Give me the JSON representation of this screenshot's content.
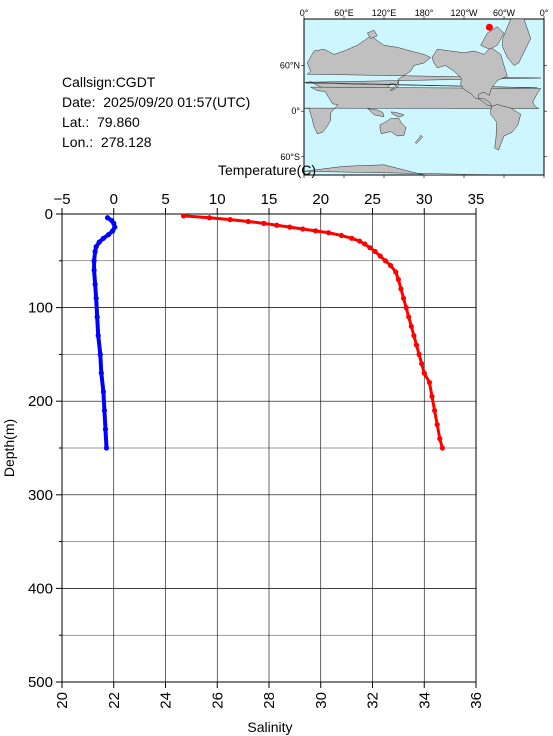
{
  "station": {
    "callsign": "Callsign:CGDT",
    "date": "Date:  2025/09/20 01:57(UTC)",
    "lat": "Lat.:  79.860",
    "lon": "Lon.:  278.128"
  },
  "map": {
    "top_labels": [
      "0°",
      "60°E",
      "120°E",
      "180°",
      "120°W",
      "60°W",
      "0°"
    ],
    "left_labels": [
      "60°N",
      "0°",
      "60°S"
    ],
    "ocean_color": "#cdf6ff",
    "land_color": "#c0c0c0",
    "marker_color": "#ff0000",
    "station_position": {
      "lat": 79.86,
      "lon": 278.128
    }
  },
  "chart_data": {
    "type": "line",
    "top_axis": {
      "label": "Temperature(C)",
      "range": [
        -5,
        35
      ],
      "ticks": [
        "−5",
        "0",
        "5",
        "10",
        "15",
        "20",
        "25",
        "30",
        "35"
      ]
    },
    "bottom_axis": {
      "label": "Salinity",
      "range": [
        20,
        36
      ],
      "ticks": [
        "20",
        "22",
        "24",
        "26",
        "28",
        "30",
        "32",
        "34",
        "36"
      ]
    },
    "y_axis": {
      "label": "Depth(m)",
      "range": [
        0,
        500
      ],
      "inverted": true,
      "ticks": [
        "0",
        "100",
        "200",
        "300",
        "400",
        "500"
      ]
    },
    "grid": true,
    "series": [
      {
        "quantity": "temperature",
        "color": "#0000ff",
        "points": [
          [
            -0.6,
            4
          ],
          [
            -0.2,
            7
          ],
          [
            0.0,
            10
          ],
          [
            0.1,
            14
          ],
          [
            -0.1,
            18
          ],
          [
            -0.5,
            22
          ],
          [
            -1.0,
            26
          ],
          [
            -1.4,
            30
          ],
          [
            -1.7,
            35
          ],
          [
            -1.8,
            40
          ],
          [
            -1.9,
            50
          ],
          [
            -1.9,
            60
          ],
          [
            -1.8,
            75
          ],
          [
            -1.7,
            90
          ],
          [
            -1.6,
            110
          ],
          [
            -1.5,
            130
          ],
          [
            -1.3,
            150
          ],
          [
            -1.2,
            170
          ],
          [
            -1.0,
            190
          ],
          [
            -0.9,
            210
          ],
          [
            -0.8,
            230
          ],
          [
            -0.7,
            250
          ]
        ]
      },
      {
        "quantity": "salinity",
        "color": "#ff0000",
        "points": [
          [
            24.7,
            2
          ],
          [
            25.7,
            4
          ],
          [
            26.5,
            6
          ],
          [
            27.2,
            8
          ],
          [
            27.8,
            10
          ],
          [
            28.3,
            12
          ],
          [
            28.8,
            14
          ],
          [
            29.3,
            16
          ],
          [
            29.8,
            18
          ],
          [
            30.3,
            20
          ],
          [
            30.8,
            23
          ],
          [
            31.2,
            26
          ],
          [
            31.5,
            29
          ],
          [
            31.7,
            32
          ],
          [
            31.9,
            36
          ],
          [
            32.1,
            40
          ],
          [
            32.3,
            45
          ],
          [
            32.5,
            50
          ],
          [
            32.7,
            55
          ],
          [
            32.9,
            62
          ],
          [
            33.0,
            70
          ],
          [
            33.1,
            80
          ],
          [
            33.2,
            90
          ],
          [
            33.3,
            100
          ],
          [
            33.4,
            110
          ],
          [
            33.5,
            120
          ],
          [
            33.6,
            130
          ],
          [
            33.7,
            140
          ],
          [
            33.8,
            150
          ],
          [
            33.9,
            160
          ],
          [
            34.0,
            170
          ],
          [
            34.2,
            180
          ],
          [
            34.3,
            195
          ],
          [
            34.4,
            210
          ],
          [
            34.5,
            225
          ],
          [
            34.6,
            240
          ],
          [
            34.7,
            250
          ]
        ]
      }
    ]
  }
}
